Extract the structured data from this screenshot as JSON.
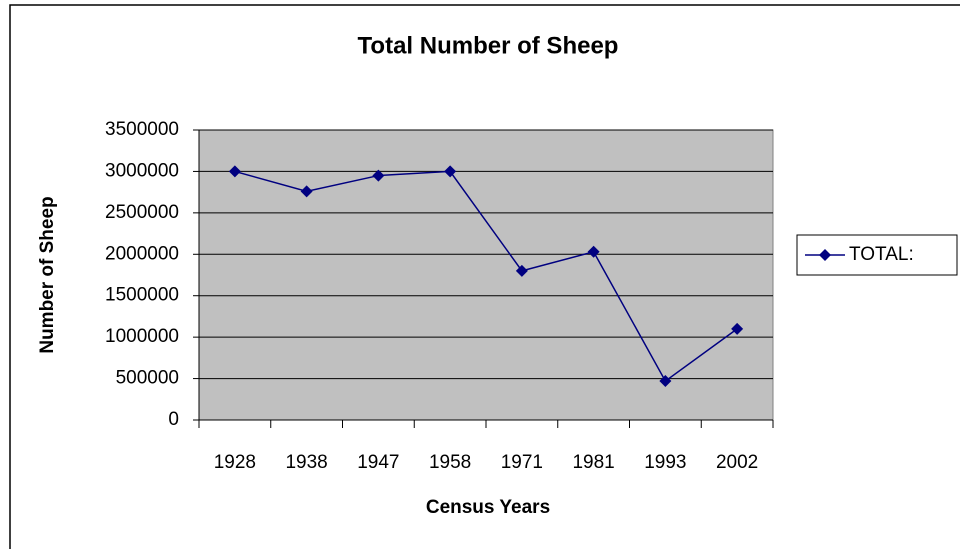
{
  "chart_data": {
    "type": "line",
    "title": "Total Number of Sheep",
    "x_label": "Census Years",
    "y_label": "Number of Sheep",
    "categories": [
      "1928",
      "1938",
      "1947",
      "1958",
      "1971",
      "1981",
      "1993",
      "2002"
    ],
    "series": [
      {
        "name": "TOTAL:",
        "color": "#000080",
        "values": [
          3000000,
          2760000,
          2950000,
          3000000,
          1800000,
          2030000,
          470000,
          1100000
        ]
      }
    ],
    "ylim": [
      0,
      3500000
    ],
    "yticks": [
      0,
      500000,
      1000000,
      1500000,
      2000000,
      2500000,
      3000000,
      3500000
    ],
    "grid": true,
    "plot_background": "#c0c0c0",
    "legend": "right"
  }
}
